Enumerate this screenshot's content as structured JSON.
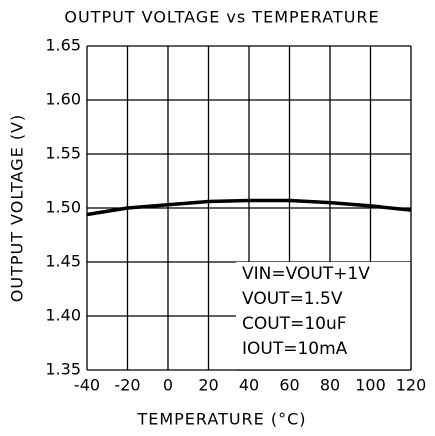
{
  "chart_data": {
    "type": "line",
    "title": "OUTPUT VOLTAGE vs TEMPERATURE",
    "xlabel": "TEMPERATURE (°C)",
    "ylabel": "OUTPUT VOLTAGE (V)",
    "x": [
      -40,
      -20,
      0,
      20,
      40,
      60,
      80,
      100,
      120
    ],
    "values": [
      1.494,
      1.5,
      1.503,
      1.506,
      1.507,
      1.507,
      1.505,
      1.502,
      1.498
    ],
    "color": "#000000",
    "xlim": [
      -40,
      120
    ],
    "xticks": [
      -40,
      -20,
      0,
      20,
      40,
      60,
      80,
      100,
      120
    ],
    "ylim": [
      1.35,
      1.65
    ],
    "yticks": [
      1.35,
      {
        "value": 1.4,
        "label": "1.40"
      },
      1.45,
      {
        "value": 1.5,
        "label": "1.50"
      },
      1.55,
      {
        "value": 1.6,
        "label": "1.60"
      },
      1.65
    ],
    "grid": true,
    "annotations": [
      "VIN=VOUT+1V",
      "VOUT=1.5V",
      "COUT=10uF",
      "IOUT=10mA"
    ]
  }
}
